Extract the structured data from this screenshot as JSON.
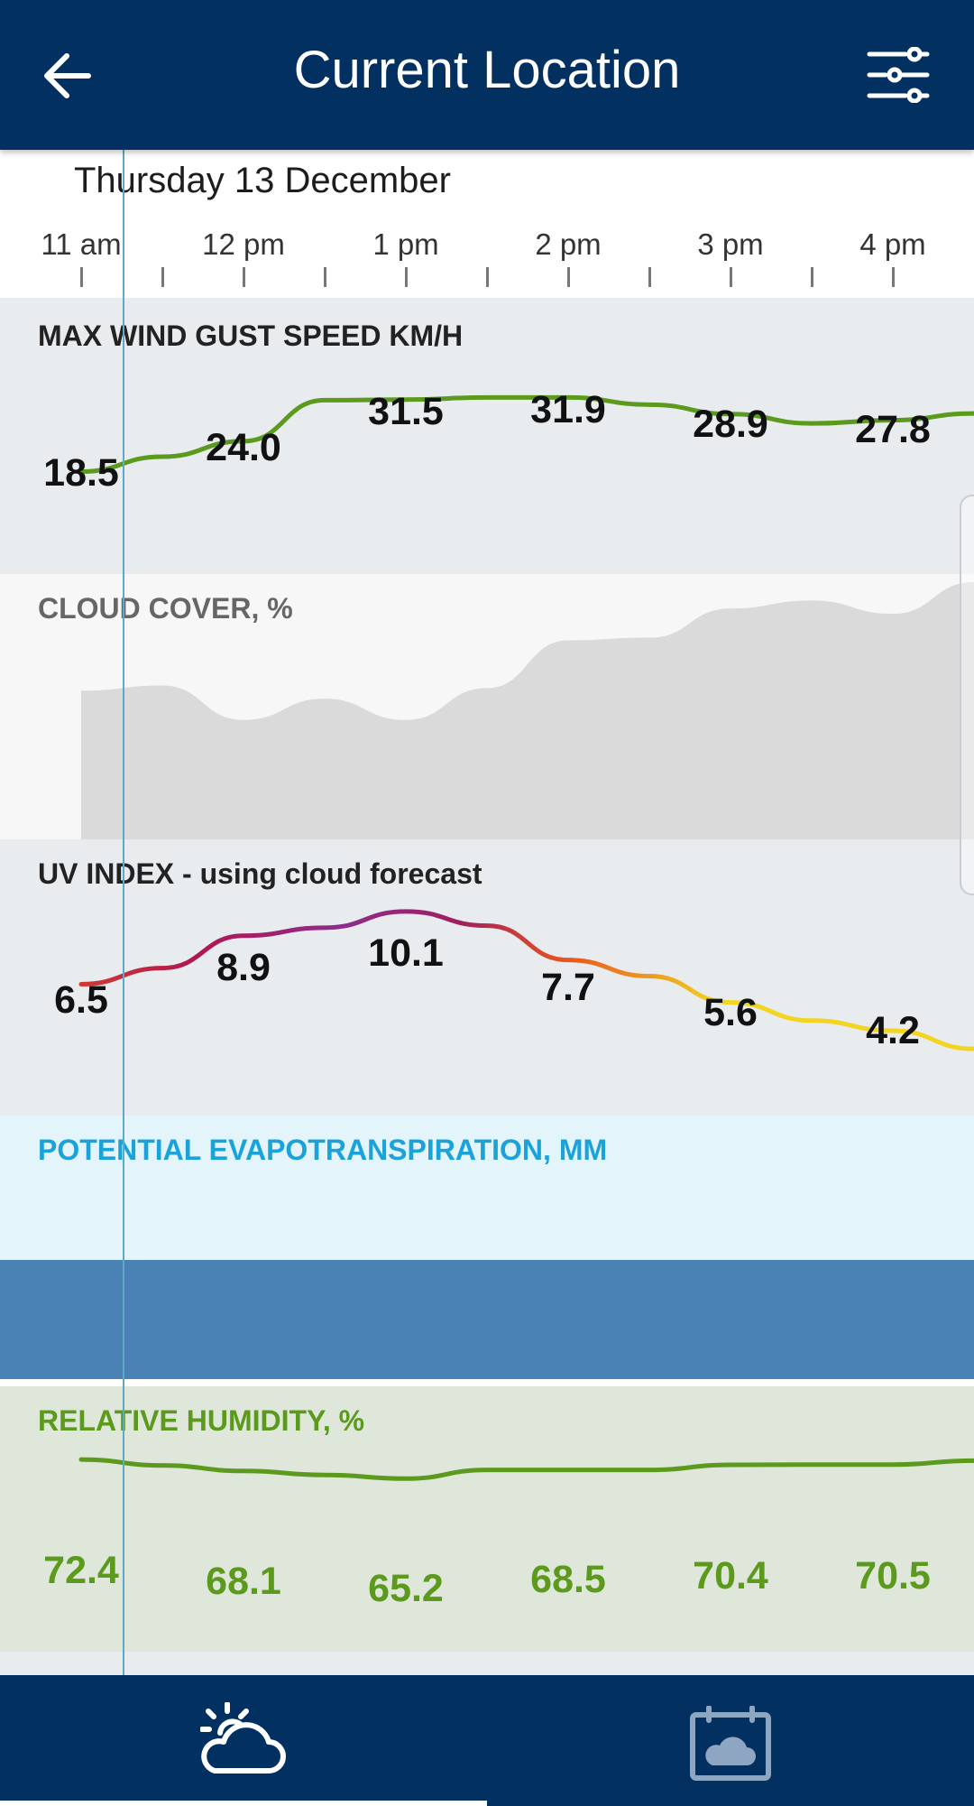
{
  "header": {
    "title": "Current Location",
    "back_icon": "arrow-left-icon",
    "settings_icon": "sliders-icon"
  },
  "date_label": "Thursday 13 December",
  "time_axis": [
    "11 am",
    "12 pm",
    "1 pm",
    "2 pm",
    "3 pm",
    "4 pm"
  ],
  "panels": {
    "wind": {
      "title": "MAX WIND GUST SPEED KM/H",
      "color": "#5b9a1d",
      "labels": [
        "18.5",
        "24.0",
        "31.5",
        "31.9",
        "28.9",
        "27.8"
      ]
    },
    "cloud": {
      "title": "CLOUD COVER, %",
      "color": "#dadada"
    },
    "uv": {
      "title": "UV INDEX - using cloud forecast",
      "labels": [
        "6.5",
        "8.9",
        "10.1",
        "7.7",
        "5.6",
        "4.2"
      ]
    },
    "evapo": {
      "title": "POTENTIAL EVAPOTRANSPIRATION, MM",
      "color": "#1aa3d8"
    },
    "humidity": {
      "title": "RELATIVE HUMIDITY, %",
      "color": "#5b9a1d",
      "labels": [
        "72.4",
        "68.1",
        "65.2",
        "68.5",
        "70.4",
        "70.5"
      ]
    }
  },
  "chart_data": [
    {
      "type": "line",
      "x": [
        "11 am",
        "11:30",
        "12 pm",
        "12:30",
        "1 pm",
        "1:30",
        "2 pm",
        "2:30",
        "3 pm",
        "3:30",
        "4 pm",
        "4:30"
      ],
      "series": [
        {
          "values": [
            18.5,
            21.2,
            24.0,
            31.4,
            31.5,
            31.9,
            31.9,
            30.6,
            28.9,
            27.2,
            27.8,
            29.0
          ]
        }
      ],
      "labeled_values": [
        18.5,
        24.0,
        31.5,
        31.9,
        28.9,
        27.8
      ],
      "ylim": [
        0,
        45
      ]
    },
    {
      "type": "area",
      "x": [
        "11 am",
        "11:30",
        "12 pm",
        "12:30",
        "1 pm",
        "1:30",
        "2 pm",
        "2:30",
        "3 pm",
        "3:30",
        "4 pm",
        "4:30"
      ],
      "series": [
        {
          "values": [
            56,
            58,
            45,
            53,
            45,
            57,
            75,
            76,
            87,
            90,
            85,
            97
          ]
        }
      ],
      "ylim": [
        0,
        100
      ]
    },
    {
      "type": "line",
      "x": [
        "11 am",
        "11:30",
        "12 pm",
        "12:30",
        "1 pm",
        "1:30",
        "2 pm",
        "2:30",
        "3 pm",
        "3:30",
        "4 pm",
        "4:30"
      ],
      "series": [
        {
          "values": [
            6.5,
            7.3,
            8.9,
            9.3,
            10.1,
            9.4,
            7.7,
            6.9,
            5.6,
            4.7,
            4.2,
            3.3
          ]
        }
      ],
      "labeled_values": [
        6.5,
        8.9,
        10.1,
        7.7,
        5.6,
        4.2
      ],
      "ylim": [
        0,
        13
      ]
    },
    {
      "type": "line",
      "x": [
        "11 am",
        "11:30",
        "12 pm",
        "12:30",
        "1 pm",
        "1:30",
        "2 pm",
        "2:30",
        "3 pm",
        "3:30",
        "4 pm",
        "4:30"
      ],
      "series": [
        {
          "values": [
            72.4,
            70.2,
            68.1,
            66.6,
            65.2,
            68.5,
            68.5,
            68.5,
            70.4,
            70.5,
            70.5,
            72.0
          ]
        }
      ],
      "labeled_values": [
        72.4,
        68.1,
        65.2,
        68.5,
        70.4,
        70.5
      ],
      "ylim": [
        0,
        100
      ]
    }
  ],
  "bottom_nav": {
    "items": [
      {
        "icon": "partly-cloudy-icon",
        "active": true
      },
      {
        "icon": "calendar-cloud-icon",
        "active": false
      }
    ]
  }
}
